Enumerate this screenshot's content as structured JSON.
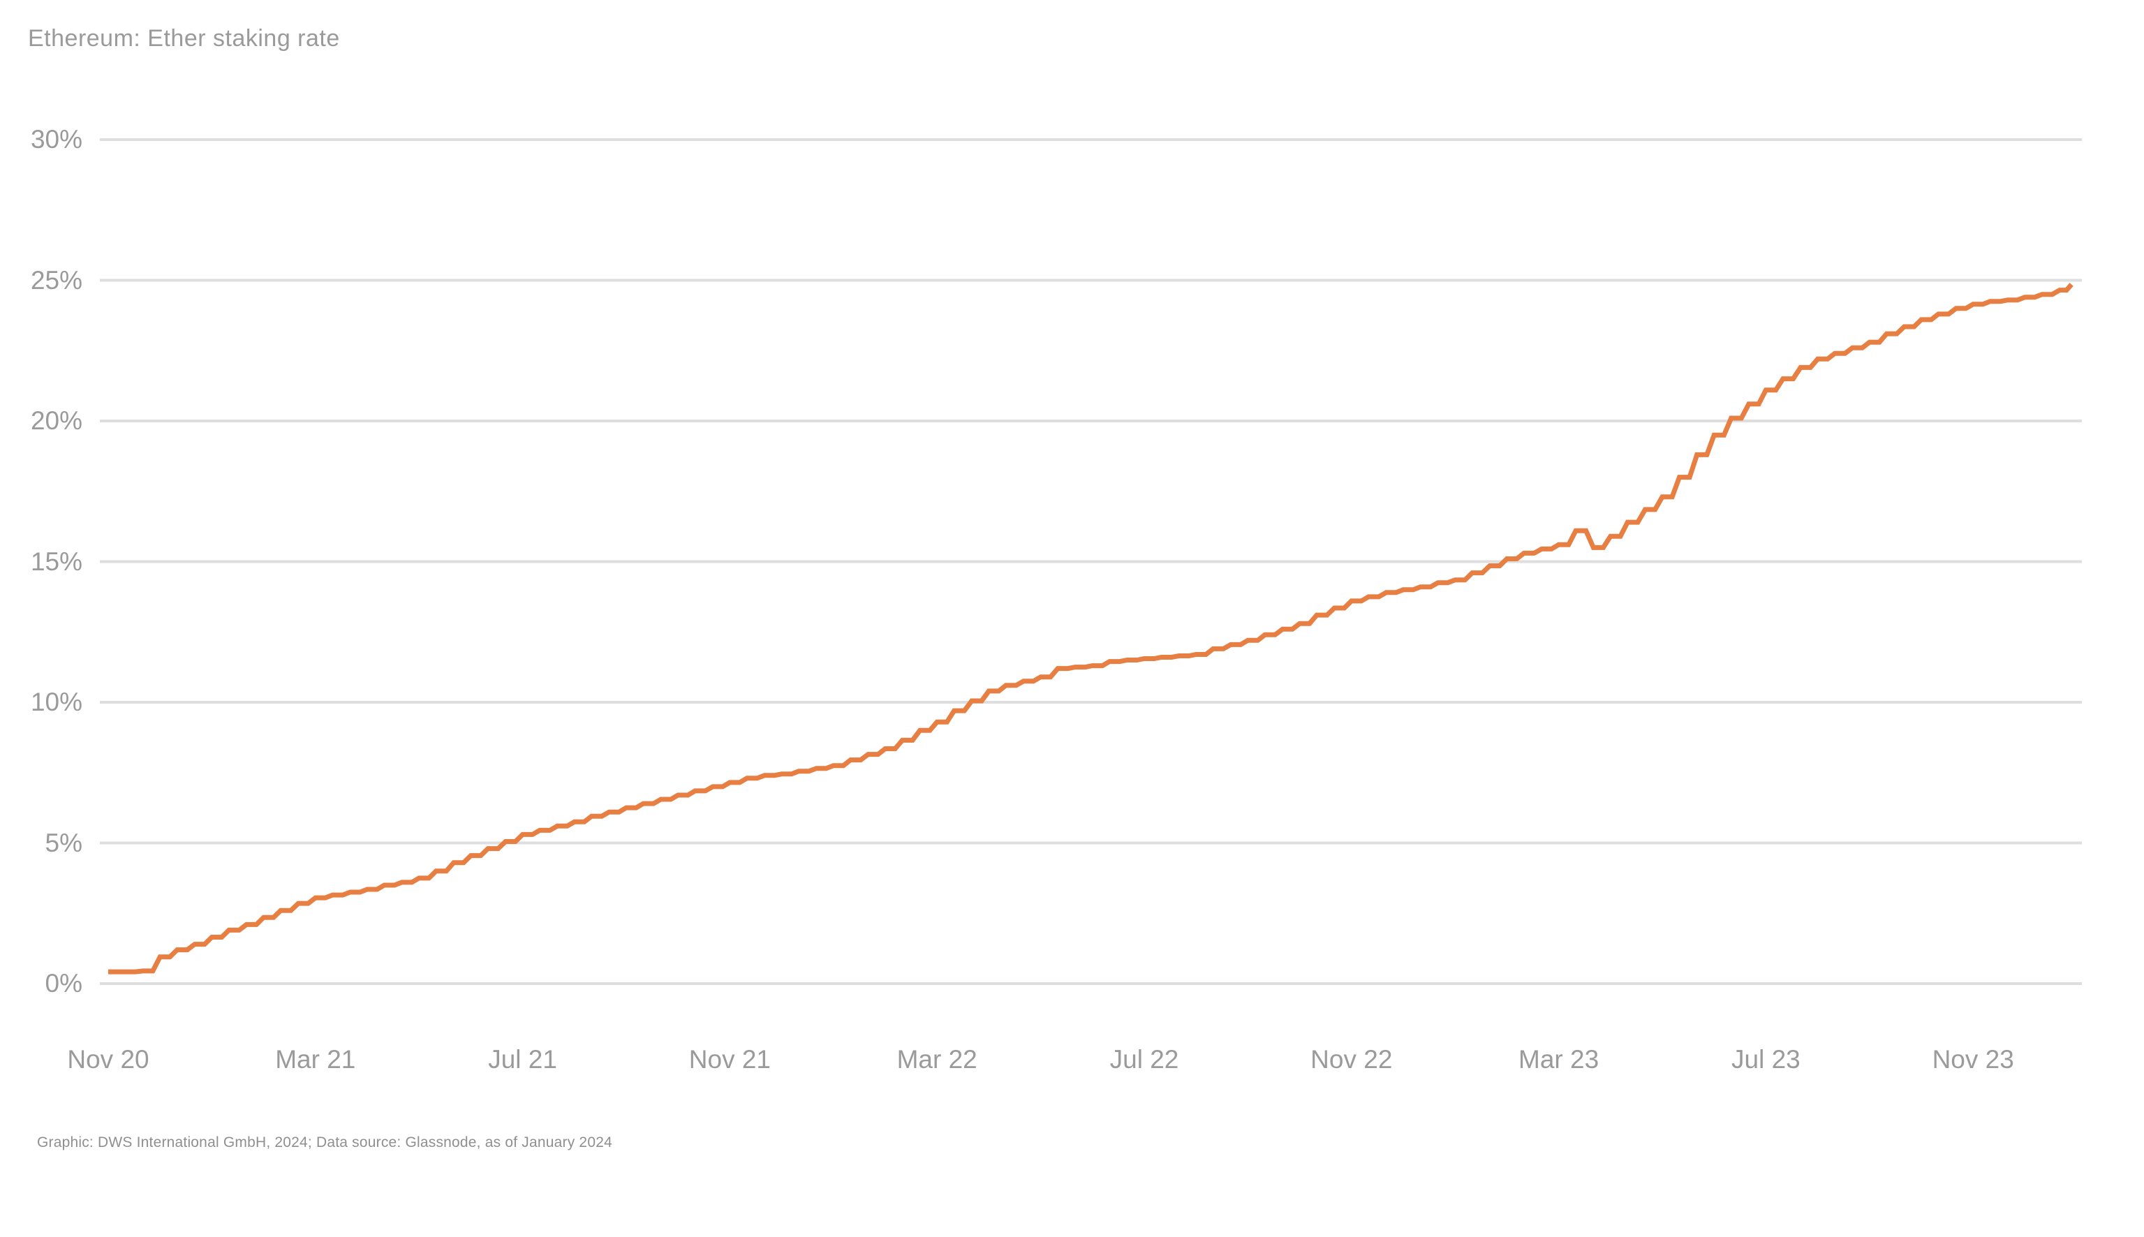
{
  "title": "Ethereum: Ether staking rate",
  "footer": "Graphic: DWS International GmbH, 2024; Data source: Glassnode, as of January 2024",
  "colors": {
    "line": "#E87F42",
    "grid": "#DEDEDE",
    "text": "#9A9A9A"
  },
  "chart_data": {
    "type": "line",
    "title": "Ethereum: Ether staking rate",
    "legend": "none",
    "grid": "horizontal-only",
    "ylim": [
      0,
      30
    ],
    "y_tick_labels": [
      "30%",
      "25%",
      "20%",
      "15%",
      "10%",
      "5%",
      "0%"
    ],
    "y_tick_values": [
      30,
      25,
      20,
      15,
      10,
      5,
      0
    ],
    "x_tick_labels": [
      "Nov 20",
      "Mar 21",
      "Jul 21",
      "Nov 21",
      "Mar 22",
      "Jul 22",
      "Nov 22",
      "Mar 23",
      "Jul 23",
      "Nov 23"
    ],
    "x_tick_months": [
      0,
      4,
      8,
      12,
      16,
      20,
      24,
      28,
      32,
      36
    ],
    "x_unit": "months since Nov 2020 (tick = 1st of month), data ends early Jan 2024",
    "series": [
      {
        "name": "Ether staking rate (% of supply)",
        "points": [
          [
            0,
            0.42
          ],
          [
            0.33,
            0.42
          ],
          [
            0.67,
            0.45
          ],
          [
            1,
            0.95
          ],
          [
            1.33,
            1.2
          ],
          [
            1.67,
            1.4
          ],
          [
            2,
            1.65
          ],
          [
            2.33,
            1.9
          ],
          [
            2.67,
            2.1
          ],
          [
            3,
            2.35
          ],
          [
            3.33,
            2.6
          ],
          [
            3.67,
            2.85
          ],
          [
            4,
            3.05
          ],
          [
            4.33,
            3.15
          ],
          [
            4.67,
            3.25
          ],
          [
            5,
            3.35
          ],
          [
            5.33,
            3.5
          ],
          [
            5.67,
            3.6
          ],
          [
            6,
            3.75
          ],
          [
            6.33,
            4.0
          ],
          [
            6.67,
            4.3
          ],
          [
            7,
            4.55
          ],
          [
            7.33,
            4.8
          ],
          [
            7.67,
            5.05
          ],
          [
            8,
            5.3
          ],
          [
            8.33,
            5.45
          ],
          [
            8.67,
            5.6
          ],
          [
            9,
            5.75
          ],
          [
            9.33,
            5.95
          ],
          [
            9.67,
            6.1
          ],
          [
            10,
            6.25
          ],
          [
            10.33,
            6.4
          ],
          [
            10.67,
            6.55
          ],
          [
            11,
            6.7
          ],
          [
            11.33,
            6.85
          ],
          [
            11.67,
            7.0
          ],
          [
            12,
            7.15
          ],
          [
            12.33,
            7.3
          ],
          [
            12.67,
            7.4
          ],
          [
            13,
            7.45
          ],
          [
            13.33,
            7.55
          ],
          [
            13.67,
            7.65
          ],
          [
            14,
            7.75
          ],
          [
            14.33,
            7.95
          ],
          [
            14.67,
            8.15
          ],
          [
            15,
            8.35
          ],
          [
            15.33,
            8.65
          ],
          [
            15.67,
            9.0
          ],
          [
            16,
            9.3
          ],
          [
            16.33,
            9.7
          ],
          [
            16.67,
            10.05
          ],
          [
            17,
            10.4
          ],
          [
            17.33,
            10.6
          ],
          [
            17.67,
            10.75
          ],
          [
            18,
            10.9
          ],
          [
            18.33,
            11.2
          ],
          [
            18.67,
            11.25
          ],
          [
            19,
            11.3
          ],
          [
            19.33,
            11.45
          ],
          [
            19.67,
            11.5
          ],
          [
            20,
            11.55
          ],
          [
            20.33,
            11.6
          ],
          [
            20.67,
            11.65
          ],
          [
            21,
            11.7
          ],
          [
            21.33,
            11.9
          ],
          [
            21.67,
            12.05
          ],
          [
            22,
            12.2
          ],
          [
            22.33,
            12.4
          ],
          [
            22.67,
            12.6
          ],
          [
            23,
            12.8
          ],
          [
            23.33,
            13.1
          ],
          [
            23.67,
            13.35
          ],
          [
            24,
            13.6
          ],
          [
            24.33,
            13.75
          ],
          [
            24.67,
            13.9
          ],
          [
            25,
            14.0
          ],
          [
            25.33,
            14.1
          ],
          [
            25.67,
            14.25
          ],
          [
            26,
            14.35
          ],
          [
            26.33,
            14.6
          ],
          [
            26.67,
            14.85
          ],
          [
            27,
            15.1
          ],
          [
            27.33,
            15.3
          ],
          [
            27.67,
            15.45
          ],
          [
            28,
            15.6
          ],
          [
            28.33,
            16.1
          ],
          [
            28.67,
            15.5
          ],
          [
            29,
            15.9
          ],
          [
            29.33,
            16.4
          ],
          [
            29.67,
            16.85
          ],
          [
            30,
            17.3
          ],
          [
            30.33,
            18.0
          ],
          [
            30.67,
            18.8
          ],
          [
            31,
            19.5
          ],
          [
            31.33,
            20.1
          ],
          [
            31.67,
            20.6
          ],
          [
            32,
            21.1
          ],
          [
            32.33,
            21.5
          ],
          [
            32.67,
            21.9
          ],
          [
            33,
            22.2
          ],
          [
            33.33,
            22.4
          ],
          [
            33.67,
            22.6
          ],
          [
            34,
            22.8
          ],
          [
            34.33,
            23.1
          ],
          [
            34.67,
            23.35
          ],
          [
            35,
            23.6
          ],
          [
            35.33,
            23.8
          ],
          [
            35.67,
            24.0
          ],
          [
            36,
            24.15
          ],
          [
            36.33,
            24.25
          ],
          [
            36.67,
            24.3
          ],
          [
            37,
            24.4
          ],
          [
            37.33,
            24.5
          ],
          [
            37.67,
            24.65
          ],
          [
            37.9,
            24.85
          ]
        ]
      }
    ]
  }
}
